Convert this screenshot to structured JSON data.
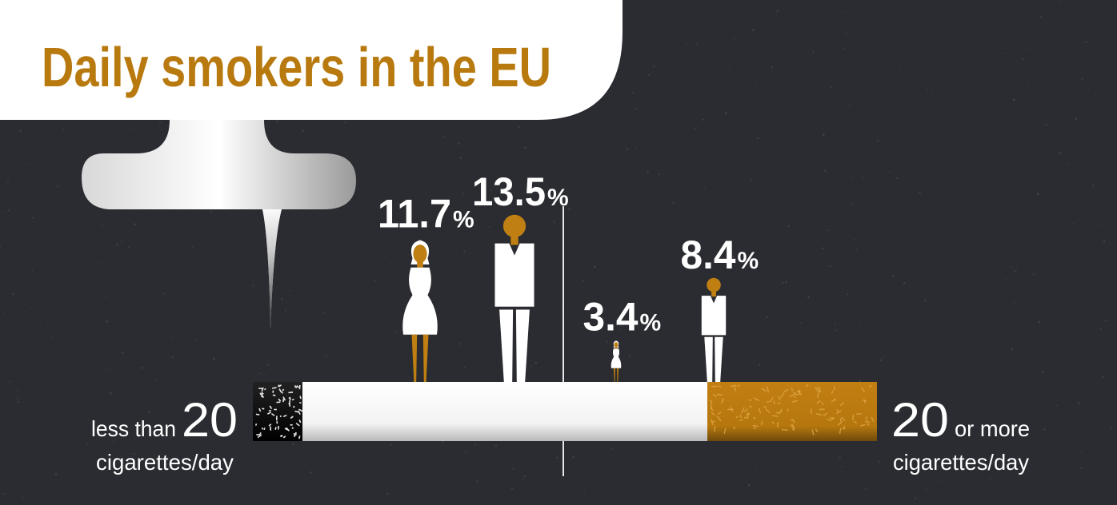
{
  "title": "Daily smokers in the EU",
  "colors": {
    "background": "#2a2c31",
    "title": "#b87a0f",
    "accent": "#c07f12",
    "figure": "#ffffff",
    "text": "#ffffff",
    "ash": "#111111",
    "filter": "#b5770e"
  },
  "chart_data": {
    "type": "bar",
    "title": "Daily smokers in the EU",
    "categories": [
      "less than 20 cigarettes/day",
      "20 or more cigarettes/day"
    ],
    "series": [
      {
        "name": "",
        "icon": "woman-icon",
        "values": [
          11.7,
          3.4
        ]
      },
      {
        "name": "",
        "icon": "man-icon",
        "values": [
          13.5,
          8.4
        ]
      }
    ],
    "value_unit": "%",
    "groups": [
      {
        "number": "20",
        "before": "less than",
        "below": "cigarettes/day",
        "points": [
          {
            "value": 11.7,
            "figure": "woman-icon"
          },
          {
            "value": 13.5,
            "figure": "man-icon"
          }
        ]
      },
      {
        "number": "20",
        "after": "or more",
        "below": "cigarettes/day",
        "points": [
          {
            "value": 3.4,
            "figure": "woman-icon"
          },
          {
            "value": 8.4,
            "figure": "man-icon"
          }
        ]
      }
    ]
  }
}
